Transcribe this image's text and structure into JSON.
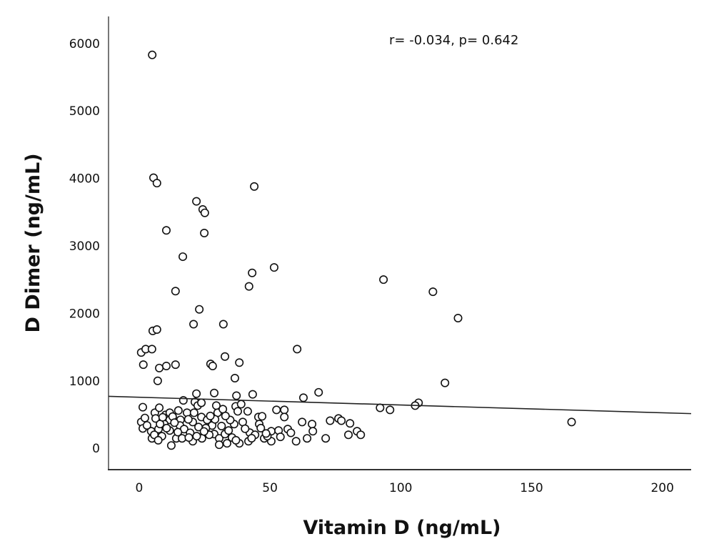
{
  "chart_data": {
    "type": "scatter",
    "xlabel": "Vitamin D (ng/mL)",
    "ylabel": "D Dimer (ng/mL)",
    "annotation": "r= -0.034, p= 0.642",
    "xlim": [
      -11.7,
      211
    ],
    "ylim": [
      -316,
      6400
    ],
    "xticks": [
      0,
      50,
      100,
      150,
      200
    ],
    "yticks": [
      0,
      1000,
      2000,
      3000,
      4000,
      5000,
      6000
    ],
    "grid": false,
    "marker": "open-circle",
    "fit_line": {
      "intercept": 757,
      "slope": -1.15
    },
    "points": [
      [
        5,
        5830
      ],
      [
        5.5,
        4010
      ],
      [
        6.8,
        3930
      ],
      [
        21.9,
        3660
      ],
      [
        44,
        3880
      ],
      [
        24.3,
        3540
      ],
      [
        25.1,
        3490
      ],
      [
        10.4,
        3230
      ],
      [
        24.9,
        3190
      ],
      [
        16.7,
        2840
      ],
      [
        51.6,
        2680
      ],
      [
        43.2,
        2600
      ],
      [
        42,
        2400
      ],
      [
        13.9,
        2330
      ],
      [
        93.4,
        2500
      ],
      [
        112.3,
        2320
      ],
      [
        121.9,
        1930
      ],
      [
        23,
        2060
      ],
      [
        20.8,
        1840
      ],
      [
        32.2,
        1840
      ],
      [
        5.2,
        1740
      ],
      [
        6.8,
        1760
      ],
      [
        0.8,
        1420
      ],
      [
        2.5,
        1470
      ],
      [
        4.9,
        1470
      ],
      [
        60.4,
        1470
      ],
      [
        32.8,
        1360
      ],
      [
        38.3,
        1270
      ],
      [
        1.6,
        1240
      ],
      [
        7.7,
        1190
      ],
      [
        10.4,
        1220
      ],
      [
        13.9,
        1240
      ],
      [
        27.3,
        1250
      ],
      [
        28.1,
        1220
      ],
      [
        7.1,
        1000
      ],
      [
        36.6,
        1040
      ],
      [
        116.9,
        970
      ],
      [
        21.9,
        810
      ],
      [
        28.7,
        820
      ],
      [
        37.2,
        780
      ],
      [
        43.4,
        800
      ],
      [
        68.6,
        830
      ],
      [
        62.8,
        750
      ],
      [
        16.9,
        710
      ],
      [
        106.8,
        675
      ],
      [
        105.5,
        633
      ],
      [
        92.1,
        600
      ],
      [
        95.9,
        570
      ],
      [
        165.3,
        390
      ],
      [
        1.4,
        610
      ],
      [
        0.8,
        390
      ],
      [
        1.4,
        295
      ],
      [
        4.6,
        253
      ],
      [
        4.9,
        148
      ],
      [
        6,
        527
      ],
      [
        6.3,
        443
      ],
      [
        7.7,
        601
      ],
      [
        7.4,
        285
      ],
      [
        8.7,
        179
      ],
      [
        10.1,
        496
      ],
      [
        11.7,
        527
      ],
      [
        11.7,
        422
      ],
      [
        12.3,
        42
      ],
      [
        9.6,
        359
      ],
      [
        11.7,
        264
      ],
      [
        14.2,
        148
      ],
      [
        15.8,
        422
      ],
      [
        15.6,
        338
      ],
      [
        18.3,
        527
      ],
      [
        17.2,
        285
      ],
      [
        16.4,
        148
      ],
      [
        20.5,
        390
      ],
      [
        20.5,
        105
      ],
      [
        21,
        527
      ],
      [
        21.3,
        686
      ],
      [
        22.4,
        633
      ],
      [
        23.8,
        675
      ],
      [
        22.7,
        316
      ],
      [
        23.8,
        464
      ],
      [
        24,
        148
      ],
      [
        26,
        422
      ],
      [
        27.9,
        338
      ],
      [
        29.5,
        633
      ],
      [
        30,
        527
      ],
      [
        32,
        580
      ],
      [
        28.7,
        211
      ],
      [
        30.6,
        148
      ],
      [
        30.6,
        53
      ],
      [
        32.8,
        211
      ],
      [
        34.2,
        264
      ],
      [
        33.6,
        74
      ],
      [
        36.3,
        359
      ],
      [
        36.9,
        622
      ],
      [
        37.7,
        548
      ],
      [
        39,
        654
      ],
      [
        39.6,
        390
      ],
      [
        38.3,
        74
      ],
      [
        41.5,
        548
      ],
      [
        42.3,
        232
      ],
      [
        41.8,
        105
      ],
      [
        44.3,
        200
      ],
      [
        45.6,
        464
      ],
      [
        45.9,
        359
      ],
      [
        47,
        475
      ],
      [
        47.8,
        148
      ],
      [
        50.5,
        253
      ],
      [
        50.5,
        105
      ],
      [
        52.5,
        570
      ],
      [
        53.3,
        264
      ],
      [
        55.5,
        570
      ],
      [
        55.5,
        464
      ],
      [
        56.8,
        285
      ],
      [
        60,
        105
      ],
      [
        62.3,
        390
      ],
      [
        64.2,
        148
      ],
      [
        66.1,
        359
      ],
      [
        66.4,
        253
      ],
      [
        71.3,
        148
      ],
      [
        73,
        410
      ],
      [
        76.2,
        443
      ],
      [
        77.3,
        410
      ],
      [
        80.6,
        370
      ],
      [
        80,
        200
      ],
      [
        83.3,
        253
      ],
      [
        84.7,
        200
      ],
      [
        3,
        340
      ],
      [
        5.8,
        200
      ],
      [
        8,
        360
      ],
      [
        9,
        460
      ],
      [
        10.5,
        300
      ],
      [
        12.8,
        470
      ],
      [
        13.5,
        380
      ],
      [
        14.8,
        240
      ],
      [
        18.8,
        430
      ],
      [
        19.5,
        230
      ],
      [
        22,
        180
      ],
      [
        25.5,
        300
      ],
      [
        26.8,
        200
      ],
      [
        29,
        430
      ],
      [
        31.5,
        330
      ],
      [
        34.8,
        420
      ],
      [
        35.5,
        160
      ],
      [
        40.5,
        290
      ],
      [
        43,
        150
      ],
      [
        46.5,
        300
      ],
      [
        49,
        180
      ],
      [
        54,
        170
      ],
      [
        58,
        230
      ],
      [
        2.2,
        450
      ],
      [
        7.3,
        120
      ],
      [
        15,
        560
      ],
      [
        19,
        160
      ],
      [
        24.8,
        250
      ],
      [
        27.2,
        480
      ],
      [
        33,
        480
      ],
      [
        37,
        120
      ],
      [
        48.5,
        220
      ]
    ]
  }
}
